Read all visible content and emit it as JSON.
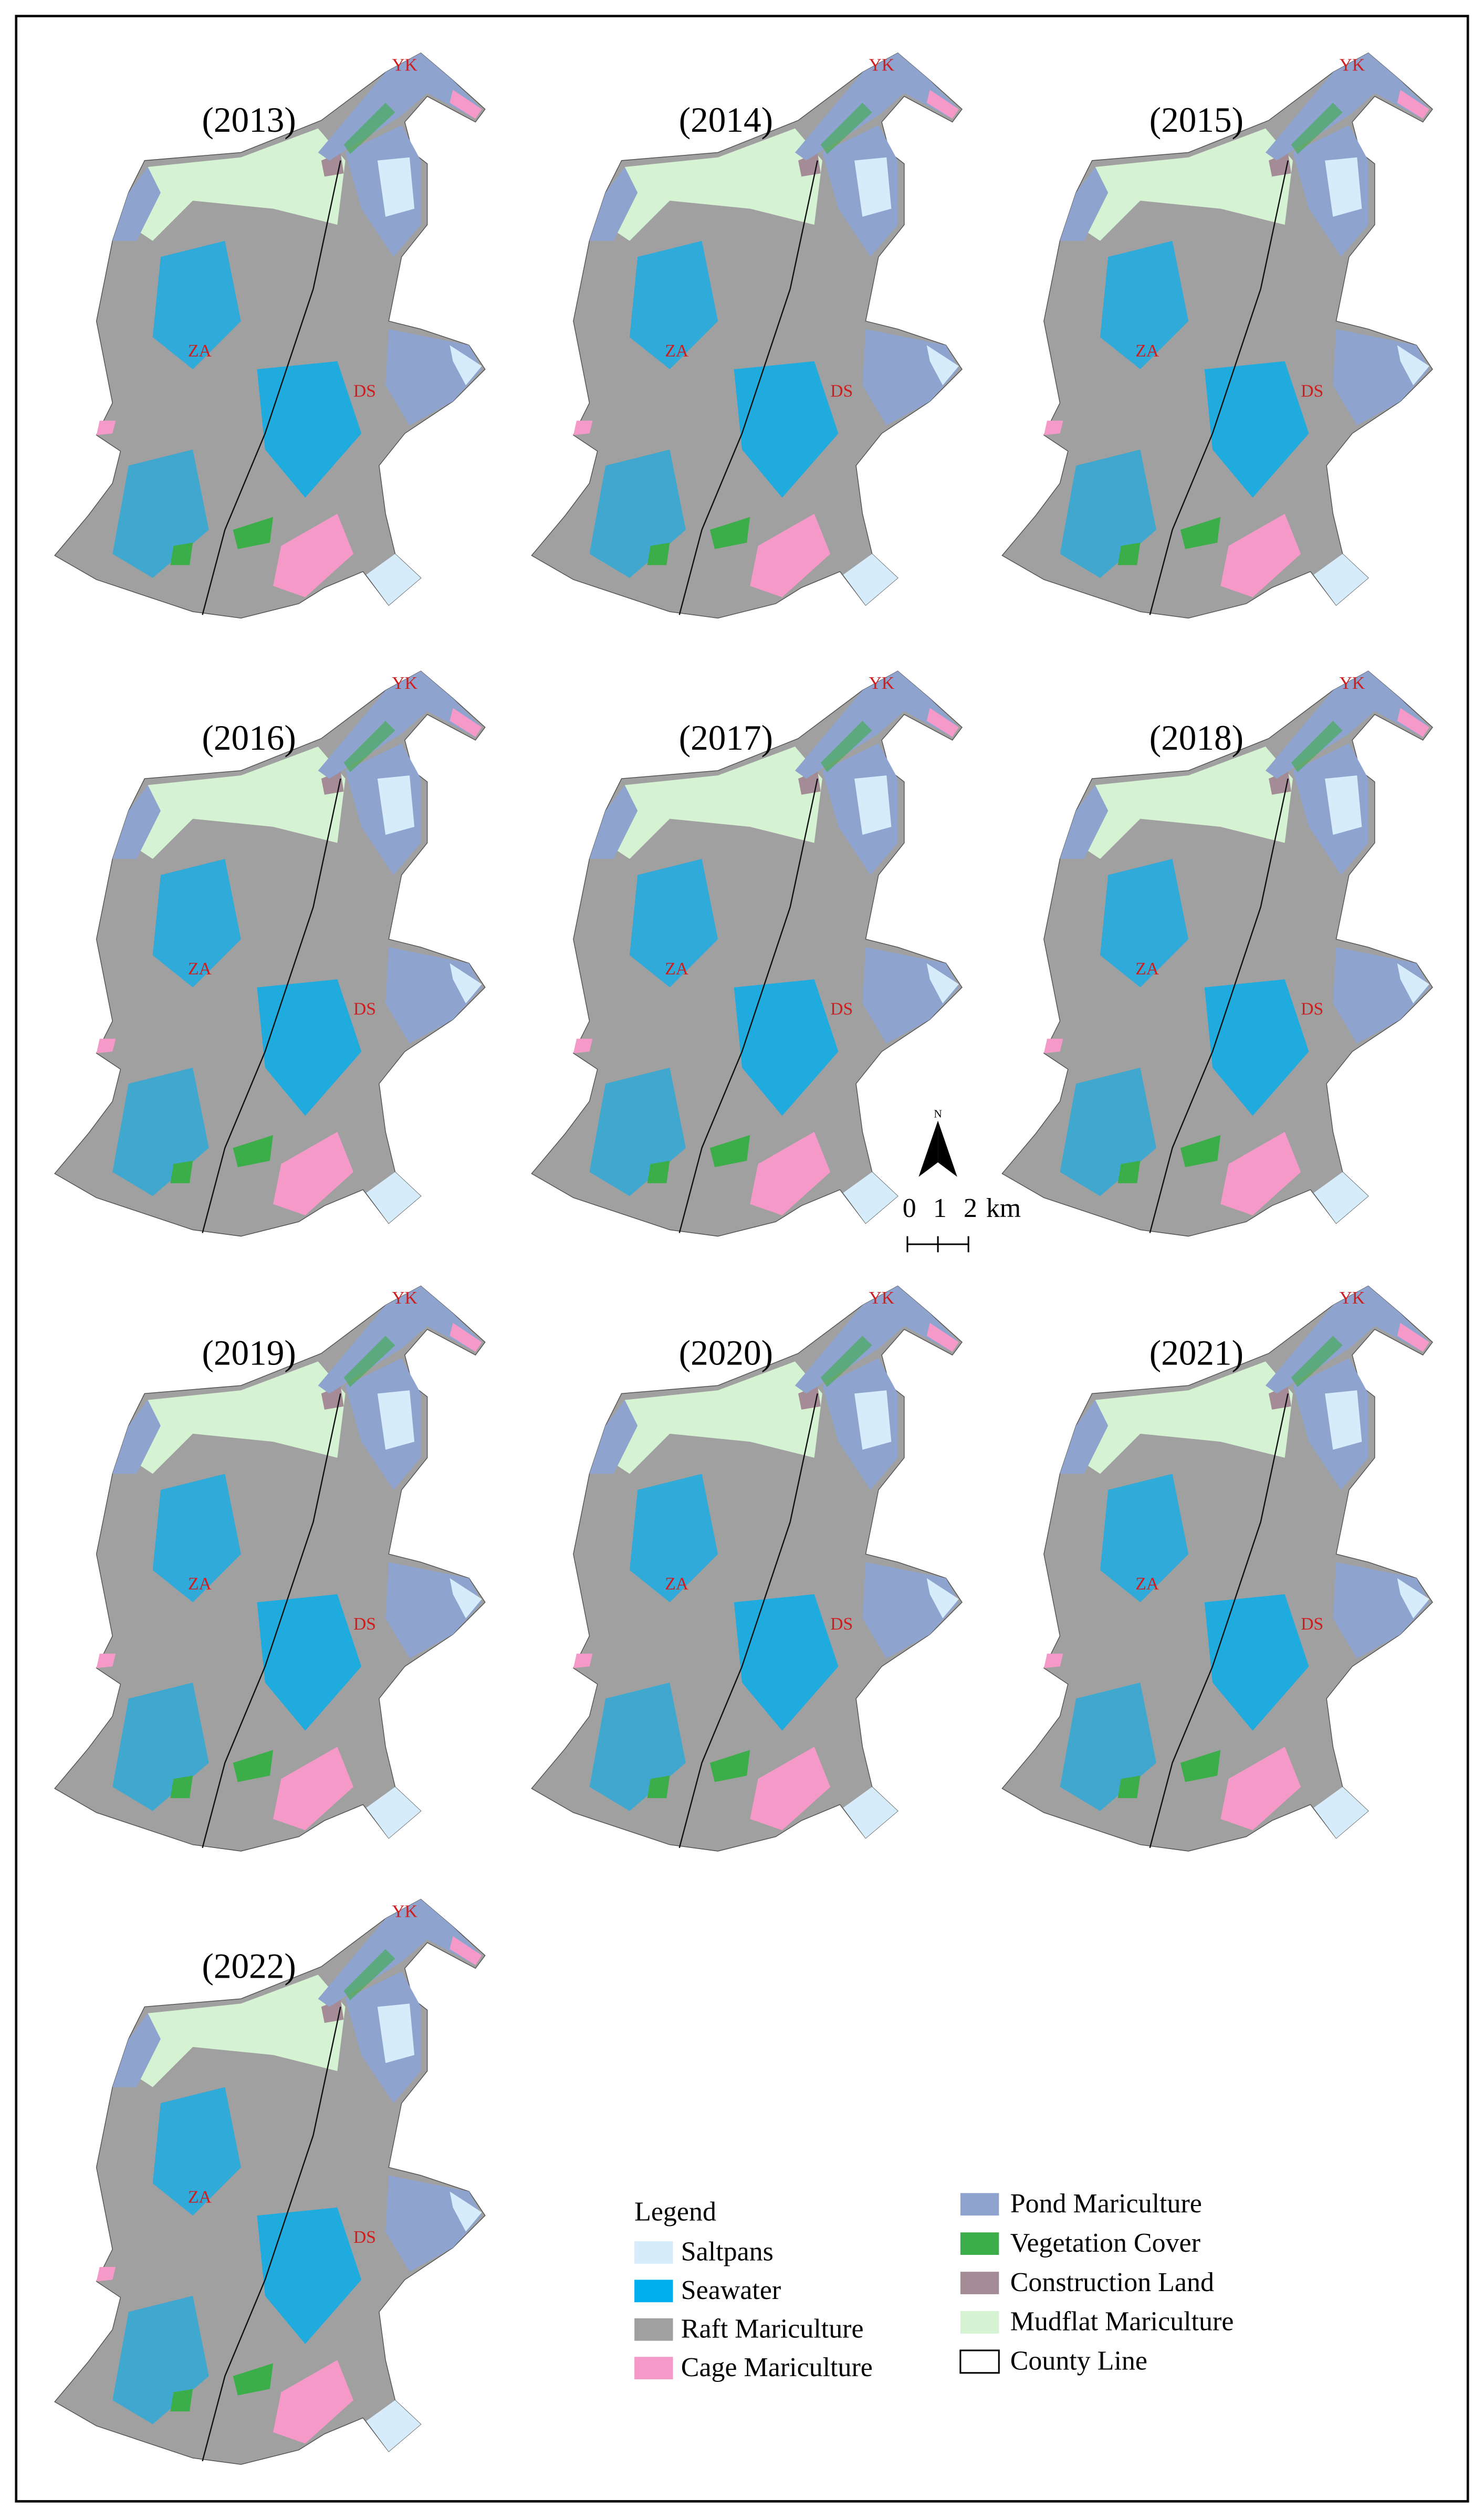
{
  "panels": [
    {
      "year": "(2013)",
      "labels": [
        "ZA",
        "DS",
        "YK"
      ]
    },
    {
      "year": "(2014)",
      "labels": [
        "ZA",
        "DS",
        "YK"
      ]
    },
    {
      "year": "(2015)",
      "labels": [
        "ZA",
        "DS",
        "YK"
      ]
    },
    {
      "year": "(2016)",
      "labels": [
        "ZA",
        "DS",
        "YK"
      ]
    },
    {
      "year": "(2017)",
      "labels": [
        "ZA",
        "DS",
        "YK"
      ]
    },
    {
      "year": "(2018)",
      "labels": [
        "ZA",
        "DS",
        "YK"
      ]
    },
    {
      "year": "(2019)",
      "labels": [
        "ZA",
        "DS",
        "YK"
      ]
    },
    {
      "year": "(2020)",
      "labels": [
        "ZA",
        "DS",
        "YK"
      ]
    },
    {
      "year": "(2021)",
      "labels": [
        "ZA",
        "DS",
        "YK"
      ]
    },
    {
      "year": "(2022)",
      "labels": [
        "ZA",
        "DS",
        "YK"
      ]
    }
  ],
  "north": "N",
  "scale": {
    "ticks": [
      "0",
      "1",
      "2"
    ],
    "unit": "km"
  },
  "legend": {
    "title": "Legend",
    "items": [
      {
        "label": "Saltpans",
        "color": "#d6ecfa"
      },
      {
        "label": "Seawater",
        "color": "#00aeef"
      },
      {
        "label": "Raft Mariculture",
        "color": "#a0a0a0"
      },
      {
        "label": "Cage Mariculture",
        "color": "#f59ac8"
      },
      {
        "label": "Pond Mariculture",
        "color": "#8ea4cf"
      },
      {
        "label": "Vegetation Cover",
        "color": "#3cae49"
      },
      {
        "label": "Construction Land",
        "color": "#a48b96"
      },
      {
        "label": "Mudflat Mariculture",
        "color": "#d5f2d3"
      },
      {
        "label": "County Line",
        "color": "#ffffff"
      }
    ]
  }
}
